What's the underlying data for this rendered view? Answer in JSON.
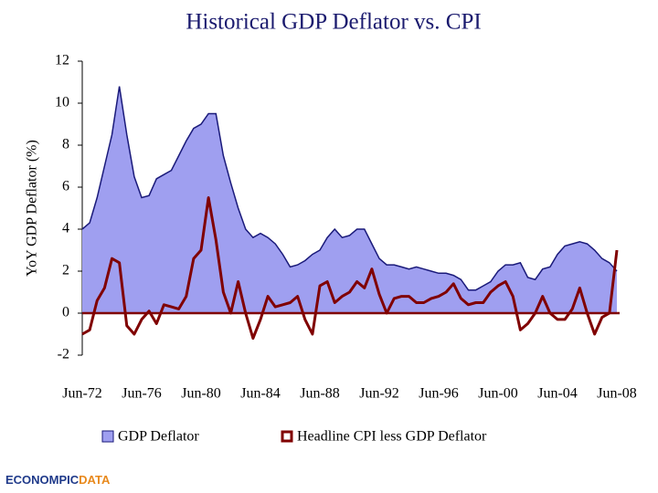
{
  "chart_data": {
    "type": "area-line",
    "title": "Historical GDP Deflator vs. CPI",
    "y_label": "YoY GDP Deflator (%)",
    "categories": [
      "Jun-72",
      null,
      null,
      null,
      null,
      null,
      null,
      null,
      "Jun-76",
      null,
      null,
      null,
      null,
      null,
      null,
      null,
      "Jun-80",
      null,
      null,
      null,
      null,
      null,
      null,
      null,
      "Jun-84",
      null,
      null,
      null,
      null,
      null,
      null,
      null,
      "Jun-88",
      null,
      null,
      null,
      null,
      null,
      null,
      null,
      "Jun-92",
      null,
      null,
      null,
      null,
      null,
      null,
      null,
      "Jun-96",
      null,
      null,
      null,
      null,
      null,
      null,
      null,
      "Jun-00",
      null,
      null,
      null,
      null,
      null,
      null,
      null,
      "Jun-04",
      null,
      null,
      null,
      null,
      null,
      null,
      null,
      "Jun-08"
    ],
    "series": [
      {
        "name": "GDP Deflator",
        "kind": "area",
        "color": "#9f9ff0",
        "edge_color": "#1a1a7a",
        "values": [
          4.0,
          4.3,
          5.5,
          7.0,
          8.5,
          10.8,
          8.5,
          6.5,
          5.5,
          5.6,
          6.4,
          6.6,
          6.8,
          7.5,
          8.2,
          8.8,
          9.0,
          9.5,
          9.5,
          7.5,
          6.2,
          5.0,
          4.0,
          3.6,
          3.8,
          3.6,
          3.3,
          2.8,
          2.2,
          2.3,
          2.5,
          2.8,
          3.0,
          3.6,
          4.0,
          3.6,
          3.7,
          4.0,
          4.0,
          3.3,
          2.6,
          2.3,
          2.3,
          2.2,
          2.1,
          2.2,
          2.1,
          2.0,
          1.9,
          1.9,
          1.8,
          1.6,
          1.1,
          1.1,
          1.3,
          1.5,
          2.0,
          2.3,
          2.3,
          2.4,
          1.7,
          1.6,
          2.1,
          2.2,
          2.8,
          3.2,
          3.3,
          3.4,
          3.3,
          3.0,
          2.6,
          2.4,
          2.0
        ]
      },
      {
        "name": "Headline CPI less GDP Deflator",
        "kind": "line",
        "color": "#800000",
        "values": [
          -1.0,
          -0.8,
          0.6,
          1.2,
          2.6,
          2.4,
          -0.6,
          -1.0,
          -0.3,
          0.1,
          -0.5,
          0.4,
          0.3,
          0.2,
          0.8,
          2.6,
          3.0,
          5.5,
          3.5,
          1.0,
          0.0,
          1.5,
          0.0,
          -1.2,
          -0.3,
          0.8,
          0.3,
          0.4,
          0.5,
          0.8,
          -0.3,
          -1.0,
          1.3,
          1.5,
          0.5,
          0.8,
          1.0,
          1.5,
          1.2,
          2.1,
          0.9,
          0.0,
          0.7,
          0.8,
          0.8,
          0.5,
          0.5,
          0.7,
          0.8,
          1.0,
          1.4,
          0.7,
          0.4,
          0.5,
          0.5,
          1.0,
          1.3,
          1.5,
          0.8,
          -0.8,
          -0.5,
          0.0,
          0.8,
          0.0,
          -0.3,
          -0.3,
          0.2,
          1.2,
          0.0,
          -1.0,
          -0.2,
          0.0,
          3.0
        ]
      }
    ],
    "ylim": [
      -2,
      12
    ],
    "yticks": [
      -2,
      0,
      2,
      4,
      6,
      8,
      10,
      12
    ],
    "logo": "ECONOMPICDATA"
  }
}
